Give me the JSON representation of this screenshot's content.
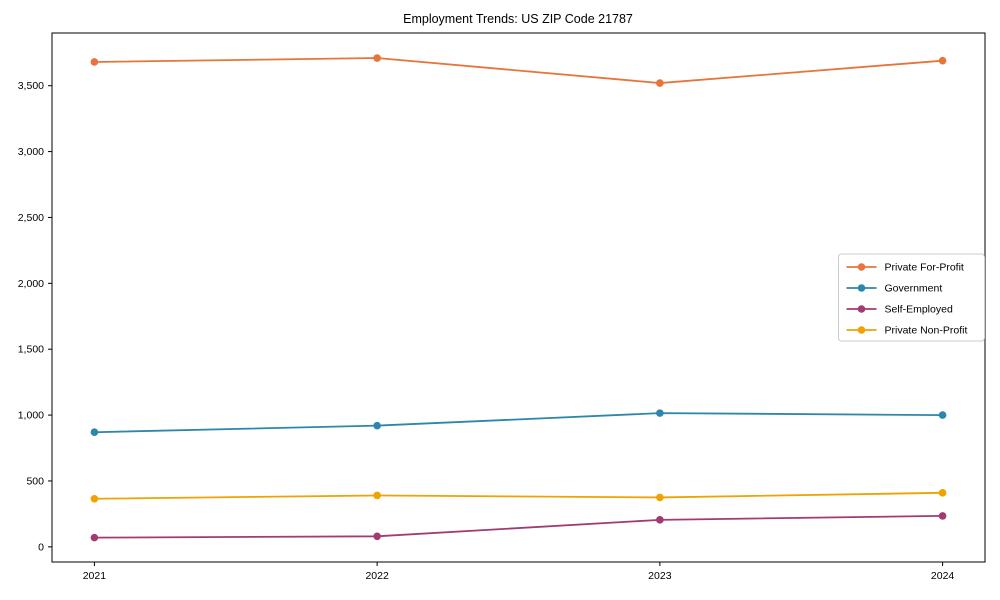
{
  "page": {
    "background": "#ffffff",
    "axis_color": "#000000",
    "legend_border_color": "#cccccc",
    "legend_background": "#ffffff"
  },
  "chart_data": {
    "type": "line",
    "title": "Employment Trends: US ZIP Code 21787",
    "x": [
      2021,
      2022,
      2023,
      2024
    ],
    "x_tick_labels": [
      "2021",
      "2022",
      "2023",
      "2024"
    ],
    "series": [
      {
        "name": "Private For-Profit",
        "color": "#E8743B",
        "values": [
          3680,
          3710,
          3520,
          3690
        ]
      },
      {
        "name": "Government",
        "color": "#2E86AB",
        "values": [
          870,
          920,
          1015,
          1000
        ]
      },
      {
        "name": "Self-Employed",
        "color": "#A23B72",
        "values": [
          70,
          80,
          205,
          235
        ]
      },
      {
        "name": "Private Non-Profit",
        "color": "#F0A202",
        "values": [
          365,
          390,
          375,
          410
        ]
      }
    ],
    "xlabel": "",
    "ylabel": "",
    "xlim": [
      2020.85,
      2024.15
    ],
    "ylim": [
      -115,
      3900
    ],
    "yticks": [
      0,
      500,
      1000,
      1500,
      2000,
      2500,
      3000,
      3500
    ],
    "ytick_labels": [
      "0",
      "500",
      "1,000",
      "1,500",
      "2,000",
      "2,500",
      "3,000",
      "3,500"
    ],
    "grid": false,
    "legend_position": "right-middle",
    "marker": "circle"
  }
}
